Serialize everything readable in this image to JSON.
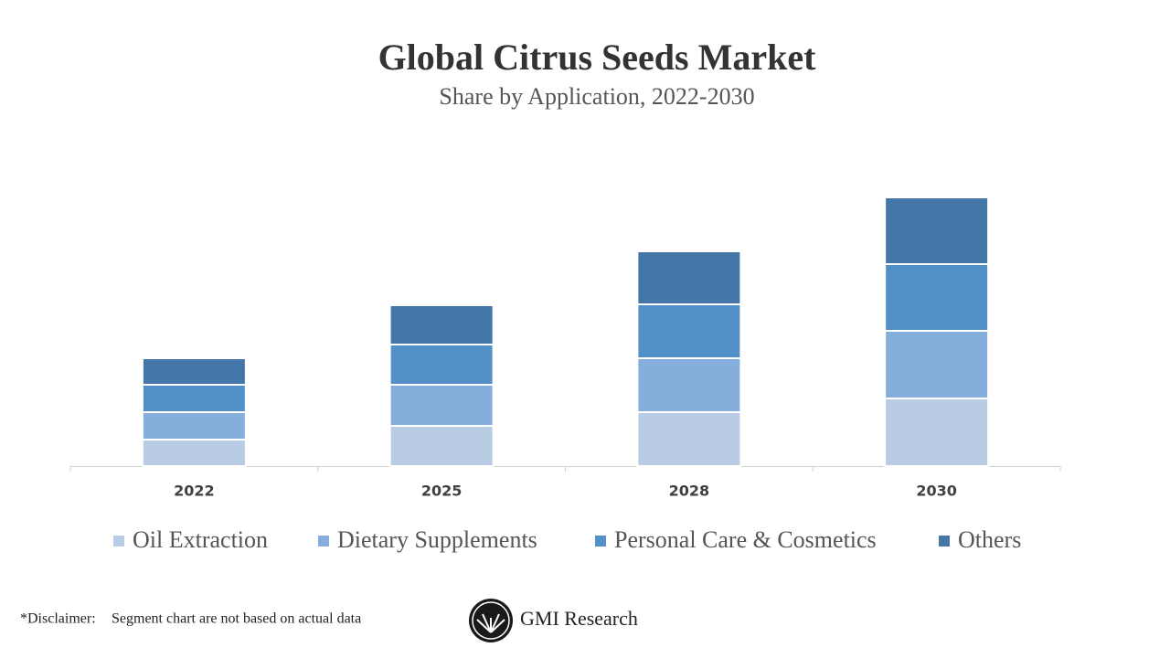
{
  "chart_data": {
    "type": "stacked_bar",
    "title": "Global Citrus Seeds Market",
    "subtitle": "Share by Application, 2022-2030",
    "categories": [
      "2022",
      "2025",
      "2028",
      "2030"
    ],
    "series": [
      {
        "name": "Oil Extraction",
        "color": "#b8cce4",
        "values": [
          2.9,
          4.4,
          5.9,
          7.4
        ]
      },
      {
        "name": "Dietary Supplements",
        "color": "#85aedd",
        "values": [
          3.0,
          4.5,
          5.9,
          7.4
        ]
      },
      {
        "name": "Personal Care & Cosmetics",
        "color": "#5490c8",
        "values": [
          3.0,
          4.4,
          5.9,
          7.3
        ]
      },
      {
        "name": "Others",
        "color": "#4477a8",
        "values": [
          2.9,
          4.3,
          5.8,
          7.3
        ]
      }
    ],
    "legend": "bottom"
  },
  "footer": {
    "disclaimer_label": "*Disclaimer:",
    "disclaimer_text": "Segment chart are not based on actual data",
    "brand": "GMI Research"
  }
}
